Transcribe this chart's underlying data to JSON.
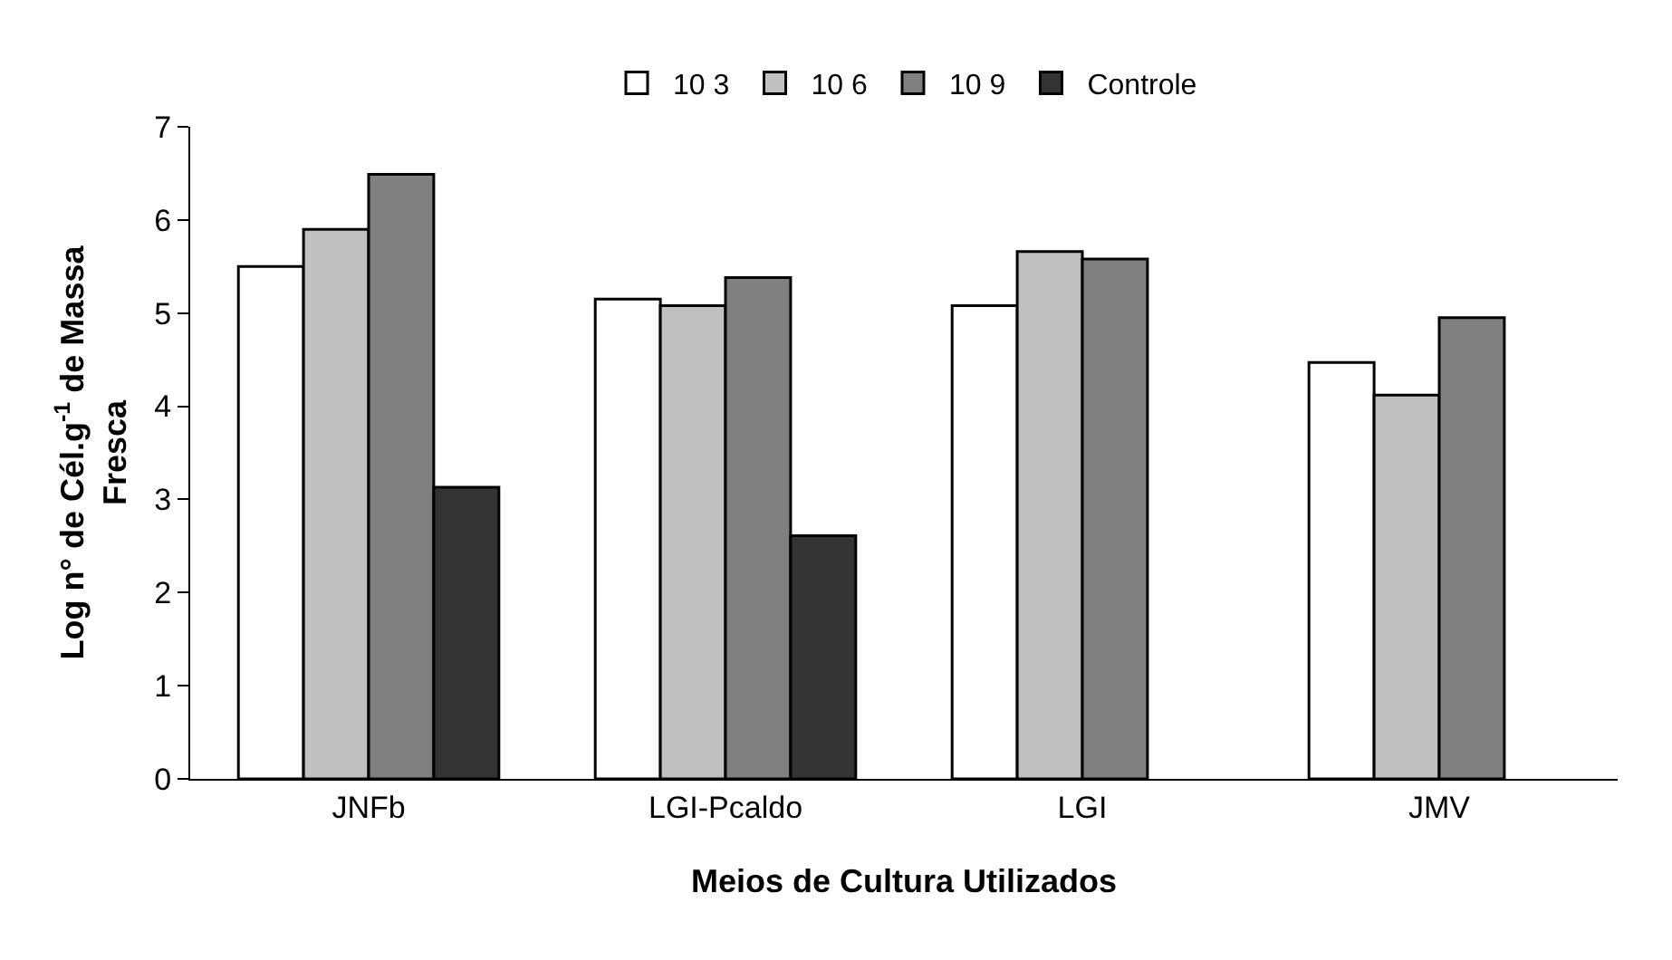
{
  "chart_data": {
    "type": "bar",
    "xlabel": "Meios de Cultura Utilizados",
    "ylabel": "Log n° de Cél.g$^{-1}$ de Massa\nFresca",
    "categories": [
      "JNFb",
      "LGI-Pcaldo",
      "LGI",
      "JMV"
    ],
    "series": [
      {
        "name": "10 3",
        "color": "#ffffff",
        "values": [
          5.5,
          5.15,
          5.08,
          4.47
        ]
      },
      {
        "name": "10 6",
        "color": "#c0c0c0",
        "values": [
          5.9,
          5.08,
          5.66,
          4.12
        ]
      },
      {
        "name": "10 9",
        "color": "#808080",
        "values": [
          6.49,
          5.38,
          5.58,
          4.95
        ]
      },
      {
        "name": "Controle",
        "color": "#333333",
        "values": [
          3.13,
          2.61,
          null,
          null
        ]
      }
    ],
    "ylim": [
      0,
      7
    ],
    "yticks": [
      0,
      1,
      2,
      3,
      4,
      5,
      6,
      7
    ],
    "legend": "top"
  }
}
